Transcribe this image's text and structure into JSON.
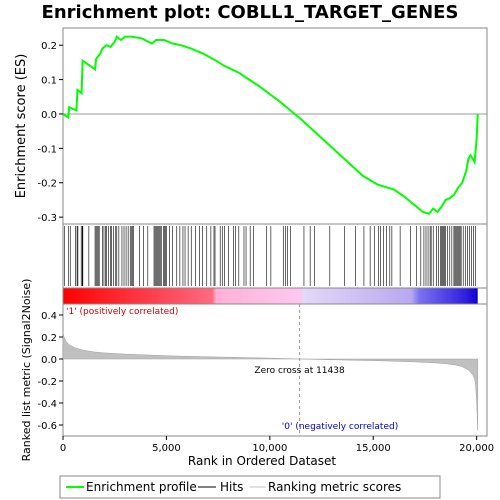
{
  "chart_data": [
    {
      "type": "line",
      "title": "Enrichment plot: COBLL1_TARGET_GENES",
      "ylabel": "Enrichment score (ES)",
      "ylim": [
        -0.32,
        0.25
      ],
      "yticks": [
        -0.3,
        -0.2,
        -0.1,
        0.0,
        0.1,
        0.2
      ],
      "ytick_labels": [
        "-0.3",
        "-0.2",
        "-0.1",
        "0.0",
        "0.1",
        "0.2"
      ],
      "xlim": [
        0,
        20500
      ],
      "grid": false,
      "line_color": "#00ff00",
      "series": [
        {
          "name": "Enrichment profile",
          "x": [
            0,
            250,
            300,
            650,
            700,
            900,
            950,
            1550,
            1600,
            1800,
            1900,
            2100,
            2300,
            2500,
            2600,
            2800,
            3000,
            3300,
            3800,
            4300,
            4500,
            4900,
            5300,
            5700,
            6200,
            6800,
            7400,
            7800,
            8500,
            9500,
            10500,
            11500,
            12500,
            13500,
            14500,
            15200,
            16000,
            16500,
            17000,
            17400,
            17700,
            17900,
            18100,
            18300,
            18500,
            18700,
            18900,
            19100,
            19300,
            19500,
            19600,
            19700,
            19900,
            20000,
            20050
          ],
          "y": [
            0.0,
            -0.01,
            0.02,
            0.01,
            0.07,
            0.06,
            0.155,
            0.13,
            0.16,
            0.175,
            0.19,
            0.2,
            0.195,
            0.21,
            0.225,
            0.215,
            0.225,
            0.225,
            0.22,
            0.205,
            0.215,
            0.215,
            0.205,
            0.2,
            0.19,
            0.175,
            0.155,
            0.14,
            0.12,
            0.08,
            0.035,
            -0.015,
            -0.07,
            -0.125,
            -0.18,
            -0.205,
            -0.22,
            -0.24,
            -0.265,
            -0.285,
            -0.29,
            -0.275,
            -0.285,
            -0.27,
            -0.25,
            -0.245,
            -0.235,
            -0.215,
            -0.2,
            -0.165,
            -0.13,
            -0.12,
            -0.14,
            -0.07,
            0.0
          ]
        }
      ],
      "hits": [
        80,
        270,
        350,
        610,
        680,
        720,
        880,
        930,
        960,
        1250,
        1550,
        1600,
        1650,
        1700,
        1750,
        1900,
        1980,
        2050,
        2100,
        2200,
        2300,
        2350,
        2450,
        2550,
        2600,
        2700,
        2850,
        2950,
        3050,
        3150,
        3250,
        3300,
        3350,
        3400,
        3700,
        3900,
        4100,
        4400,
        4450,
        4500,
        4550,
        4600,
        4650,
        4700,
        4750,
        4850,
        4900,
        4950,
        5000,
        5150,
        5300,
        5500,
        5650,
        5800,
        5900,
        6050,
        6200,
        6400,
        6600,
        6750,
        6950,
        7150,
        7300,
        7350,
        7600,
        7700,
        7800,
        8000,
        8250,
        8350,
        8500,
        8750,
        8850,
        9050,
        9200,
        9850,
        10050,
        10650,
        10750,
        10850,
        11000,
        11650,
        11950,
        12150,
        12900,
        13600,
        14150,
        14550,
        14850,
        15050,
        15250,
        15350,
        15500,
        15650,
        15800,
        15900,
        16300,
        16800,
        17100,
        17300,
        17450,
        17550,
        17650,
        17750,
        17800,
        17900,
        18050,
        18150,
        18250,
        18300,
        18350,
        18400,
        18450,
        18500,
        18600,
        18700,
        18800,
        18900,
        18950,
        19000,
        19050,
        19100,
        19150,
        19200,
        19250,
        19350,
        19450,
        19550,
        19650,
        19750,
        19850,
        19950
      ]
    },
    {
      "type": "area",
      "xlabel": "Rank in Ordered Dataset",
      "ylabel": "Ranked list metric (Signal2Noise)",
      "ylim": [
        -0.7,
        0.5
      ],
      "yticks": [
        -0.6,
        -0.4,
        -0.2,
        0.0,
        0.2,
        0.4
      ],
      "ytick_labels": [
        "-0.6",
        "-0.4",
        "-0.2",
        "0.0",
        "0.2",
        "0.4"
      ],
      "xlim": [
        0,
        20500
      ],
      "xticks": [
        0,
        5000,
        10000,
        15000,
        20000
      ],
      "xtick_labels": [
        "0",
        "5,000",
        "10,000",
        "15,000",
        "20,000"
      ],
      "fill_color": "#c0c0c0",
      "metric": {
        "x": [
          0,
          50,
          150,
          300,
          600,
          1000,
          1500,
          2000,
          3000,
          4000,
          5000,
          6000,
          7000,
          8000,
          9000,
          10000,
          11000,
          11438,
          12000,
          13000,
          14000,
          15000,
          16000,
          17000,
          18000,
          18500,
          19000,
          19300,
          19600,
          19800,
          19900,
          19950,
          20000,
          20050
        ],
        "y": [
          0.25,
          0.2,
          0.16,
          0.13,
          0.1,
          0.08,
          0.065,
          0.055,
          0.045,
          0.037,
          0.03,
          0.025,
          0.02,
          0.016,
          0.012,
          0.008,
          0.003,
          0.0,
          -0.003,
          -0.007,
          -0.011,
          -0.015,
          -0.02,
          -0.026,
          -0.035,
          -0.043,
          -0.055,
          -0.07,
          -0.1,
          -0.14,
          -0.18,
          -0.24,
          -0.4,
          -0.65
        ]
      },
      "zero_cross_label": "Zero cross at 11438",
      "zero_cross_x": 11438,
      "pos_label": "'1' (positively correlated)",
      "neg_label": "'0' (negatively correlated)"
    }
  ],
  "legend": {
    "items": [
      {
        "label": "Enrichment profile",
        "color": "#00ff00"
      },
      {
        "label": "Hits",
        "color": "#000000"
      },
      {
        "label": "Ranking metric scores",
        "color": "#c0c0c0"
      }
    ]
  }
}
